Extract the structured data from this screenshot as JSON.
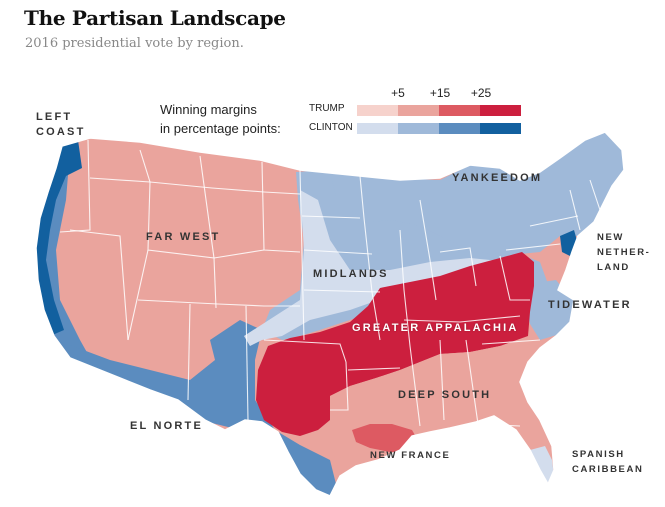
{
  "header": {
    "title": "The Partisan Landscape",
    "subtitle": "2016 presidential vote by region."
  },
  "legend": {
    "label_line1": "Winning margins",
    "label_line2": "in percentage points:",
    "trump_label": "TRUMP",
    "clinton_label": "CLINTON",
    "ticks": [
      "+5",
      "+15",
      "+25"
    ],
    "trump_colors": [
      "#f6d2cc",
      "#eaa49d",
      "#dd5a62",
      "#cc1f3e"
    ],
    "clinton_colors": [
      "#d3dded",
      "#9fb9d9",
      "#5b8cbf",
      "#12609f"
    ]
  },
  "regions": {
    "left_coast_1": "LEFT",
    "left_coast_2": "COAST",
    "far_west": "FAR WEST",
    "yankeedom": "YANKEEDOM",
    "midlands": "MIDLANDS",
    "new_netherland_1": "NEW",
    "new_netherland_2": "NETHER-",
    "new_netherland_3": "LAND",
    "tidewater": "TIDEWATER",
    "greater_appalachia": "GREATER APPALACHIA",
    "deep_south": "DEEP SOUTH",
    "el_norte": "EL NORTE",
    "new_france": "NEW FRANCE",
    "spanish_caribbean_1": "SPANISH",
    "spanish_caribbean_2": "CARIBBEAN"
  },
  "map_colors": {
    "far_west": "#eaa49d",
    "left_coast": "#12609f",
    "left_coast_inland": "#5b8cbf",
    "el_norte": "#5b8cbf",
    "midlands": "#9fb9d9",
    "midlands_light": "#d3dded",
    "yankeedom": "#9fb9d9",
    "new_netherland": "#12609f",
    "tidewater": "#9fb9d9",
    "greater_appalachia": "#cc1f3e",
    "deep_south": "#eaa49d",
    "new_france": "#dd5a62",
    "spanish_caribbean": "#d3dded",
    "state_border": "#ffffff"
  }
}
